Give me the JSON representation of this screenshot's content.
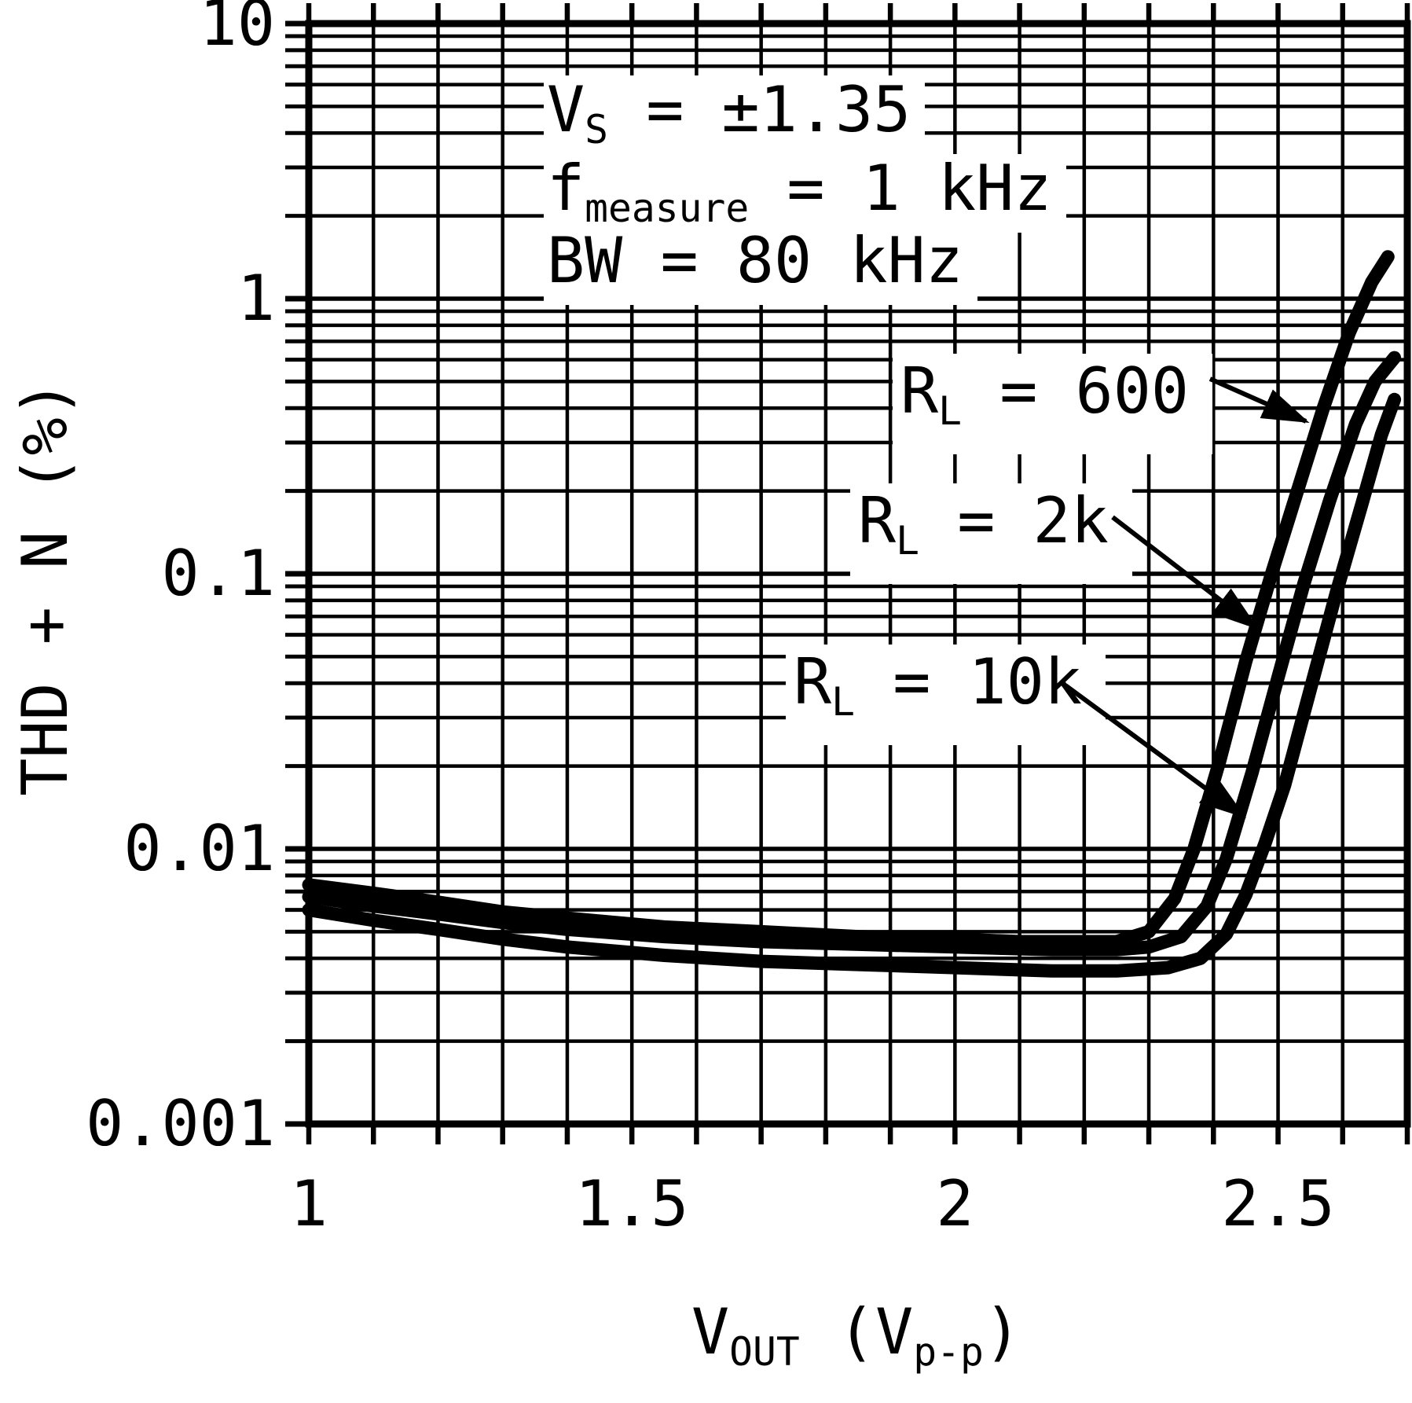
{
  "chart_data": {
    "type": "line",
    "title": "",
    "xlabel": "VOUT (Vp-p)",
    "ylabel": "THD + N (%)",
    "xlabel_parts": {
      "pre": "V",
      "sub1": "OUT",
      "mid": " (V",
      "sub2": "p-p",
      "post": ")"
    },
    "x_scale": "linear",
    "y_scale": "log",
    "xlim": [
      1.0,
      2.7
    ],
    "ylim": [
      0.001,
      10
    ],
    "x_minor_step": 0.1,
    "x_ticks": [
      1,
      1.5,
      2,
      2.5
    ],
    "x_tick_labels": [
      "1",
      "1.5",
      "2",
      "2.5"
    ],
    "y_ticks": [
      10,
      1,
      0.1,
      0.01,
      0.001
    ],
    "y_tick_labels": [
      "10",
      "1",
      "0.1",
      "0.01",
      "0.001"
    ],
    "grid": true,
    "legend_position": "inline-labels-with-arrows",
    "conditions": [
      {
        "pre": "V",
        "sub": "S",
        "post": " = ±1.35"
      },
      {
        "pre": "f",
        "sub": "measure",
        "post": " = 1 kHz"
      },
      {
        "pre": "BW = 80 kHz",
        "sub": "",
        "post": ""
      }
    ],
    "series": [
      {
        "name": "RL = 600",
        "label": {
          "pre": "R",
          "sub": "L",
          "post": " = 600"
        },
        "points": [
          [
            1.0,
            0.0074
          ],
          [
            1.1,
            0.0069
          ],
          [
            1.2,
            0.0064
          ],
          [
            1.3,
            0.0059
          ],
          [
            1.4,
            0.0056
          ],
          [
            1.55,
            0.0052
          ],
          [
            1.7,
            0.005
          ],
          [
            1.85,
            0.0048
          ],
          [
            2.0,
            0.0047
          ],
          [
            2.1,
            0.0046
          ],
          [
            2.2,
            0.0046
          ],
          [
            2.25,
            0.0046
          ],
          [
            2.3,
            0.005
          ],
          [
            2.34,
            0.0066
          ],
          [
            2.37,
            0.01
          ],
          [
            2.41,
            0.021
          ],
          [
            2.45,
            0.048
          ],
          [
            2.49,
            0.1
          ],
          [
            2.53,
            0.2
          ],
          [
            2.57,
            0.4
          ],
          [
            2.61,
            0.75
          ],
          [
            2.645,
            1.15
          ],
          [
            2.67,
            1.42
          ]
        ]
      },
      {
        "name": "RL = 2k",
        "label": {
          "pre": "R",
          "sub": "L",
          "post": " = 2k"
        },
        "points": [
          [
            1.0,
            0.0067
          ],
          [
            1.1,
            0.0062
          ],
          [
            1.2,
            0.0058
          ],
          [
            1.3,
            0.0054
          ],
          [
            1.4,
            0.0051
          ],
          [
            1.55,
            0.0048
          ],
          [
            1.7,
            0.0046
          ],
          [
            1.85,
            0.0045
          ],
          [
            2.0,
            0.0044
          ],
          [
            2.15,
            0.0043
          ],
          [
            2.25,
            0.0043
          ],
          [
            2.3,
            0.0044
          ],
          [
            2.35,
            0.0048
          ],
          [
            2.39,
            0.0062
          ],
          [
            2.42,
            0.0092
          ],
          [
            2.46,
            0.019
          ],
          [
            2.5,
            0.042
          ],
          [
            2.54,
            0.092
          ],
          [
            2.58,
            0.185
          ],
          [
            2.62,
            0.35
          ],
          [
            2.65,
            0.5
          ],
          [
            2.68,
            0.61
          ]
        ]
      },
      {
        "name": "RL = 10k",
        "label": {
          "pre": "R",
          "sub": "L",
          "post": " = 10k"
        },
        "points": [
          [
            1.0,
            0.006
          ],
          [
            1.1,
            0.0055
          ],
          [
            1.2,
            0.0051
          ],
          [
            1.3,
            0.0047
          ],
          [
            1.4,
            0.0044
          ],
          [
            1.55,
            0.0041
          ],
          [
            1.7,
            0.0039
          ],
          [
            1.85,
            0.0038
          ],
          [
            2.0,
            0.0037
          ],
          [
            2.15,
            0.0036
          ],
          [
            2.25,
            0.0036
          ],
          [
            2.33,
            0.0037
          ],
          [
            2.38,
            0.004
          ],
          [
            2.42,
            0.0049
          ],
          [
            2.45,
            0.0068
          ],
          [
            2.48,
            0.0105
          ],
          [
            2.51,
            0.017
          ],
          [
            2.55,
            0.038
          ],
          [
            2.59,
            0.085
          ],
          [
            2.63,
            0.18
          ],
          [
            2.66,
            0.32
          ],
          [
            2.68,
            0.43
          ]
        ]
      }
    ],
    "colors": {
      "ink": "#000000",
      "background": "#ffffff"
    }
  }
}
